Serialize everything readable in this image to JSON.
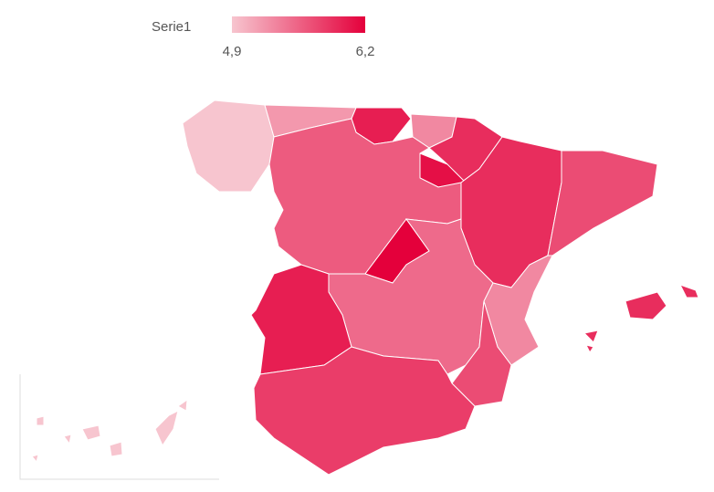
{
  "chart_data": {
    "type": "choropleth",
    "legend": {
      "title": "Serie1",
      "min": {
        "value": 4.9,
        "label": "4,9"
      },
      "max": {
        "value": 6.2,
        "label": "6,2"
      }
    },
    "colors": [
      "#f7c5cf",
      "#e4003b"
    ],
    "values": [
      4.9,
      5.2,
      6.0,
      5.3,
      5.9,
      6.1,
      5.6,
      5.9,
      5.7,
      6.2,
      5.5,
      6.0,
      5.3,
      5.7,
      5.8,
      5.9,
      4.9
    ]
  }
}
